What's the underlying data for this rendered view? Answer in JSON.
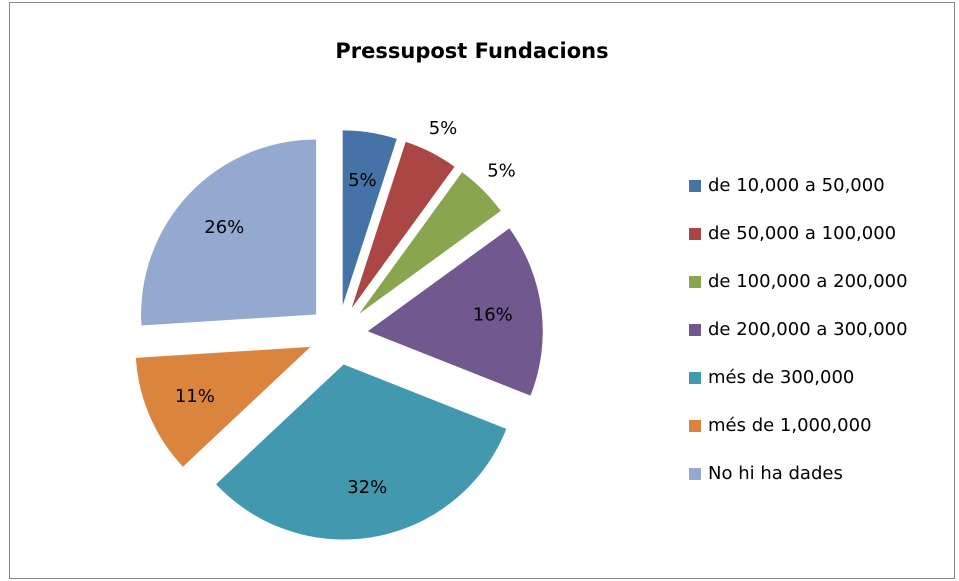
{
  "chart_data": {
    "type": "pie",
    "title": "Pressupost Fundacions",
    "categories": [
      "de 10,000 a 50,000",
      "de 50,000 a 100,000",
      "de 100,000 a 200,000",
      "de 200,000 a 300,000",
      "més de 300,000",
      "més de 1,000,000",
      "No hi ha dades"
    ],
    "values": [
      5,
      5,
      5,
      16,
      32,
      11,
      26
    ],
    "value_labels": [
      "5%",
      "5%",
      "5%",
      "16%",
      "32%",
      "11%",
      "26%"
    ],
    "colors": [
      "#4572a7",
      "#aa4643",
      "#89a54e",
      "#71588f",
      "#4198af",
      "#db843d",
      "#93a9cf"
    ],
    "legend": "right"
  }
}
